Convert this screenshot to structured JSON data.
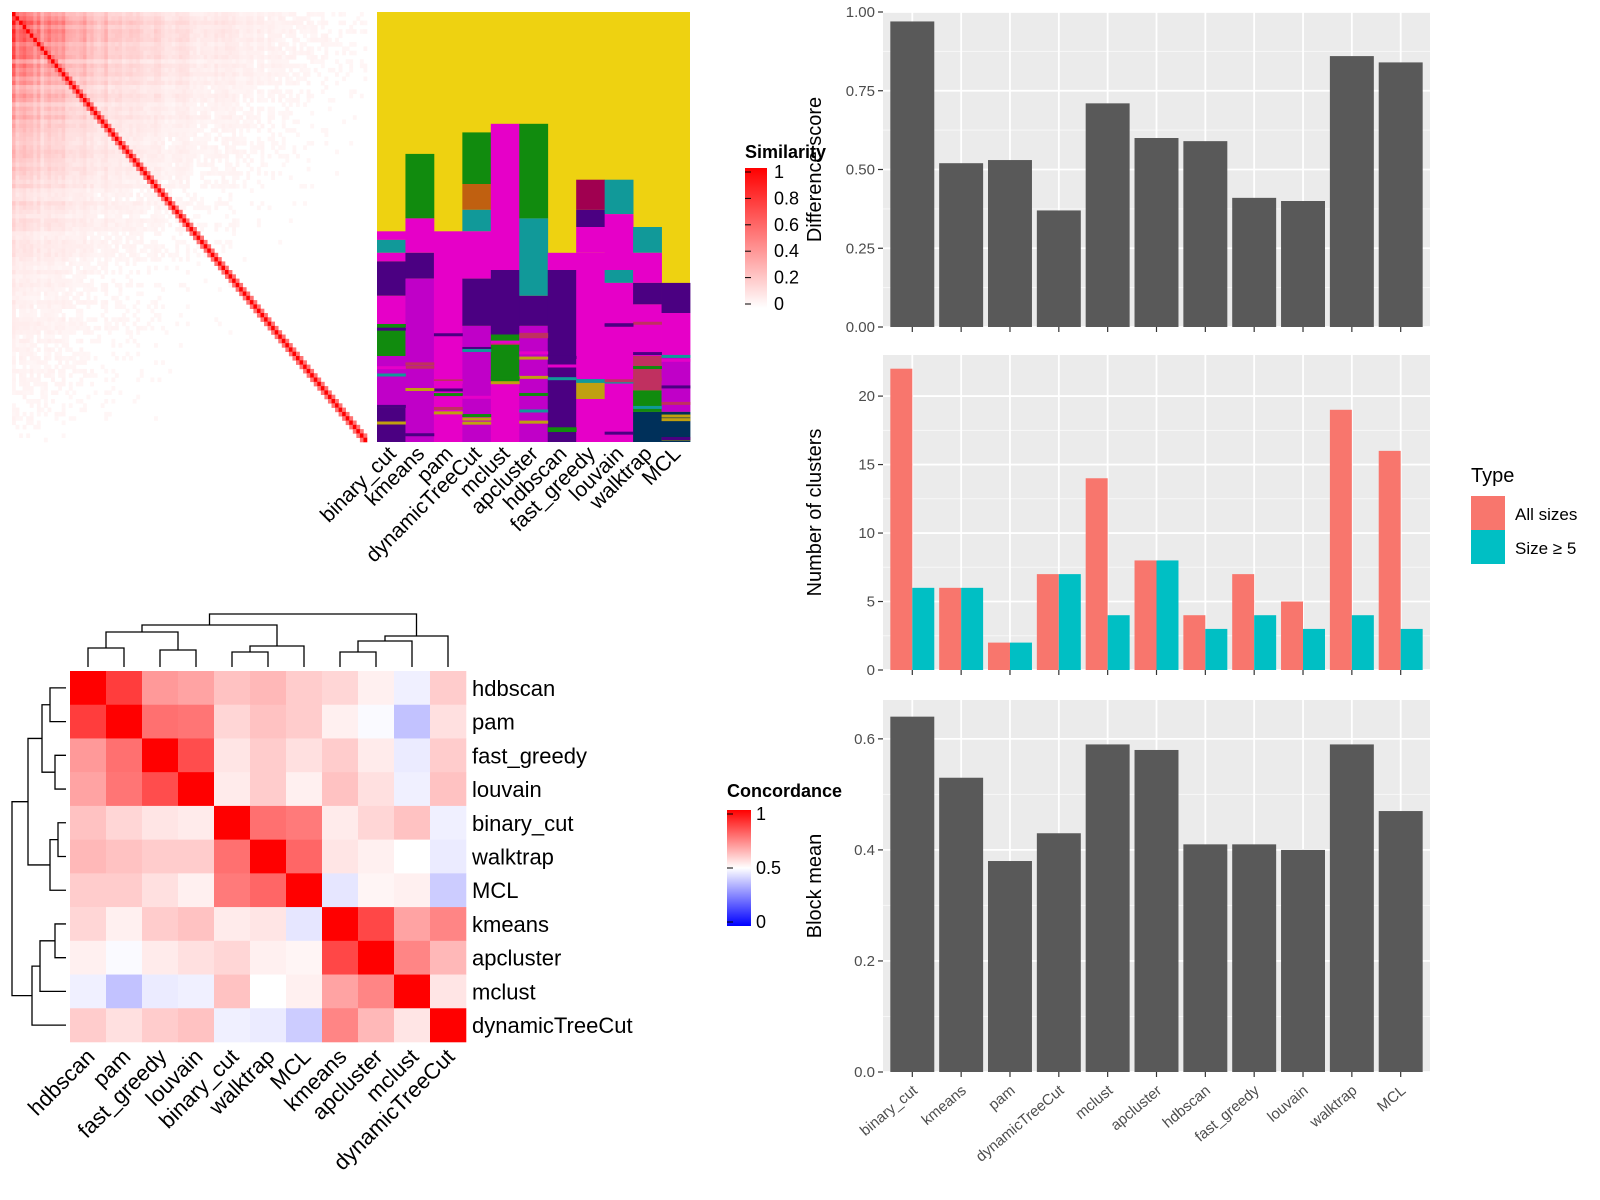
{
  "chart_data": [
    {
      "type": "heatmap",
      "legend_title": "Similarity",
      "legend_ticks": [
        "1",
        "0.8",
        "0.6",
        "0.4",
        "0.2",
        "0"
      ],
      "colors": {
        "high": "#ff0000",
        "low": "#ffffff"
      }
    },
    {
      "type": "heatmap",
      "categories": [
        "binary_cut",
        "kmeans",
        "pam",
        "dynamicTreeCut",
        "mclust",
        "apcluster",
        "hdbscan",
        "fast_greedy",
        "louvain",
        "walktrap",
        "MCL"
      ],
      "colors": {
        "background": "#eed211",
        "pink": "#e600c8",
        "indigo": "#4b0082",
        "green": "#118b0e",
        "teal": "#119999",
        "magenta": "#c000c8"
      }
    },
    {
      "type": "heatmap",
      "legend_title": "Concordance",
      "legend_ticks": [
        "1",
        "0.5",
        "0"
      ],
      "row_labels": [
        "hdbscan",
        "pam",
        "fast_greedy",
        "louvain",
        "binary_cut",
        "walktrap",
        "MCL",
        "kmeans",
        "apcluster",
        "mclust",
        "dynamicTreeCut"
      ],
      "col_labels": [
        "hdbscan",
        "pam",
        "fast_greedy",
        "louvain",
        "binary_cut",
        "walktrap",
        "MCL",
        "kmeans",
        "apcluster",
        "mclust",
        "dynamicTreeCut"
      ],
      "values": [
        [
          1.0,
          0.88,
          0.7,
          0.68,
          0.62,
          0.64,
          0.6,
          0.58,
          0.53,
          0.47,
          0.6
        ],
        [
          0.88,
          1.0,
          0.78,
          0.77,
          0.58,
          0.62,
          0.6,
          0.53,
          0.49,
          0.38,
          0.56
        ],
        [
          0.7,
          0.78,
          1.0,
          0.85,
          0.55,
          0.6,
          0.56,
          0.6,
          0.54,
          0.46,
          0.6
        ],
        [
          0.68,
          0.77,
          0.85,
          1.0,
          0.54,
          0.6,
          0.53,
          0.62,
          0.56,
          0.47,
          0.62
        ],
        [
          0.62,
          0.58,
          0.55,
          0.54,
          1.0,
          0.78,
          0.76,
          0.54,
          0.58,
          0.62,
          0.47
        ],
        [
          0.64,
          0.62,
          0.6,
          0.6,
          0.78,
          1.0,
          0.8,
          0.55,
          0.53,
          0.5,
          0.46
        ],
        [
          0.6,
          0.6,
          0.56,
          0.53,
          0.76,
          0.8,
          1.0,
          0.45,
          0.52,
          0.53,
          0.4
        ],
        [
          0.58,
          0.53,
          0.6,
          0.62,
          0.54,
          0.55,
          0.45,
          1.0,
          0.86,
          0.68,
          0.74
        ],
        [
          0.53,
          0.49,
          0.54,
          0.56,
          0.58,
          0.53,
          0.52,
          0.86,
          1.0,
          0.74,
          0.64
        ],
        [
          0.47,
          0.38,
          0.46,
          0.47,
          0.62,
          0.5,
          0.53,
          0.68,
          0.74,
          1.0,
          0.55
        ],
        [
          0.6,
          0.56,
          0.6,
          0.62,
          0.47,
          0.46,
          0.4,
          0.74,
          0.64,
          0.55,
          1.0
        ]
      ],
      "colors": {
        "high": "#ff0000",
        "mid": "#ffffff",
        "low": "#0000ff"
      }
    },
    {
      "type": "bar",
      "categories": [
        "binary_cut",
        "kmeans",
        "pam",
        "dynamicTreeCut",
        "mclust",
        "apcluster",
        "hdbscan",
        "fast_greedy",
        "louvain",
        "walktrap",
        "MCL"
      ],
      "values": [
        0.97,
        0.52,
        0.53,
        0.37,
        0.71,
        0.6,
        0.59,
        0.41,
        0.4,
        0.86,
        0.84
      ],
      "ylabel": "Difference score",
      "ylim": [
        0,
        1.0
      ],
      "yticks": [
        "0.00",
        "0.25",
        "0.50",
        "0.75",
        "1.00"
      ],
      "color": "#595959"
    },
    {
      "type": "bar",
      "categories": [
        "binary_cut",
        "kmeans",
        "pam",
        "dynamicTreeCut",
        "mclust",
        "apcluster",
        "hdbscan",
        "fast_greedy",
        "louvain",
        "walktrap",
        "MCL"
      ],
      "series": [
        {
          "name": "All sizes",
          "values": [
            22,
            6,
            2,
            7,
            14,
            8,
            4,
            7,
            5,
            19,
            16
          ],
          "color": "#f8766d"
        },
        {
          "name": "Size ≥ 5",
          "values": [
            6,
            6,
            2,
            7,
            4,
            8,
            3,
            4,
            3,
            4,
            3
          ],
          "color": "#00bfc4"
        }
      ],
      "ylabel": "Number of clusters",
      "ylim": [
        0,
        23
      ],
      "yticks": [
        "0",
        "5",
        "10",
        "15",
        "20"
      ],
      "legend_title": "Type",
      "legend_position": "right"
    },
    {
      "type": "bar",
      "categories": [
        "binary_cut",
        "kmeans",
        "pam",
        "dynamicTreeCut",
        "mclust",
        "apcluster",
        "hdbscan",
        "fast_greedy",
        "louvain",
        "walktrap",
        "MCL"
      ],
      "values": [
        0.64,
        0.53,
        0.38,
        0.43,
        0.59,
        0.58,
        0.41,
        0.41,
        0.4,
        0.59,
        0.47
      ],
      "ylabel": "Block mean",
      "ylim": [
        0,
        0.67
      ],
      "yticks": [
        "0.0",
        "0.2",
        "0.4",
        "0.6"
      ],
      "color": "#595959"
    }
  ]
}
